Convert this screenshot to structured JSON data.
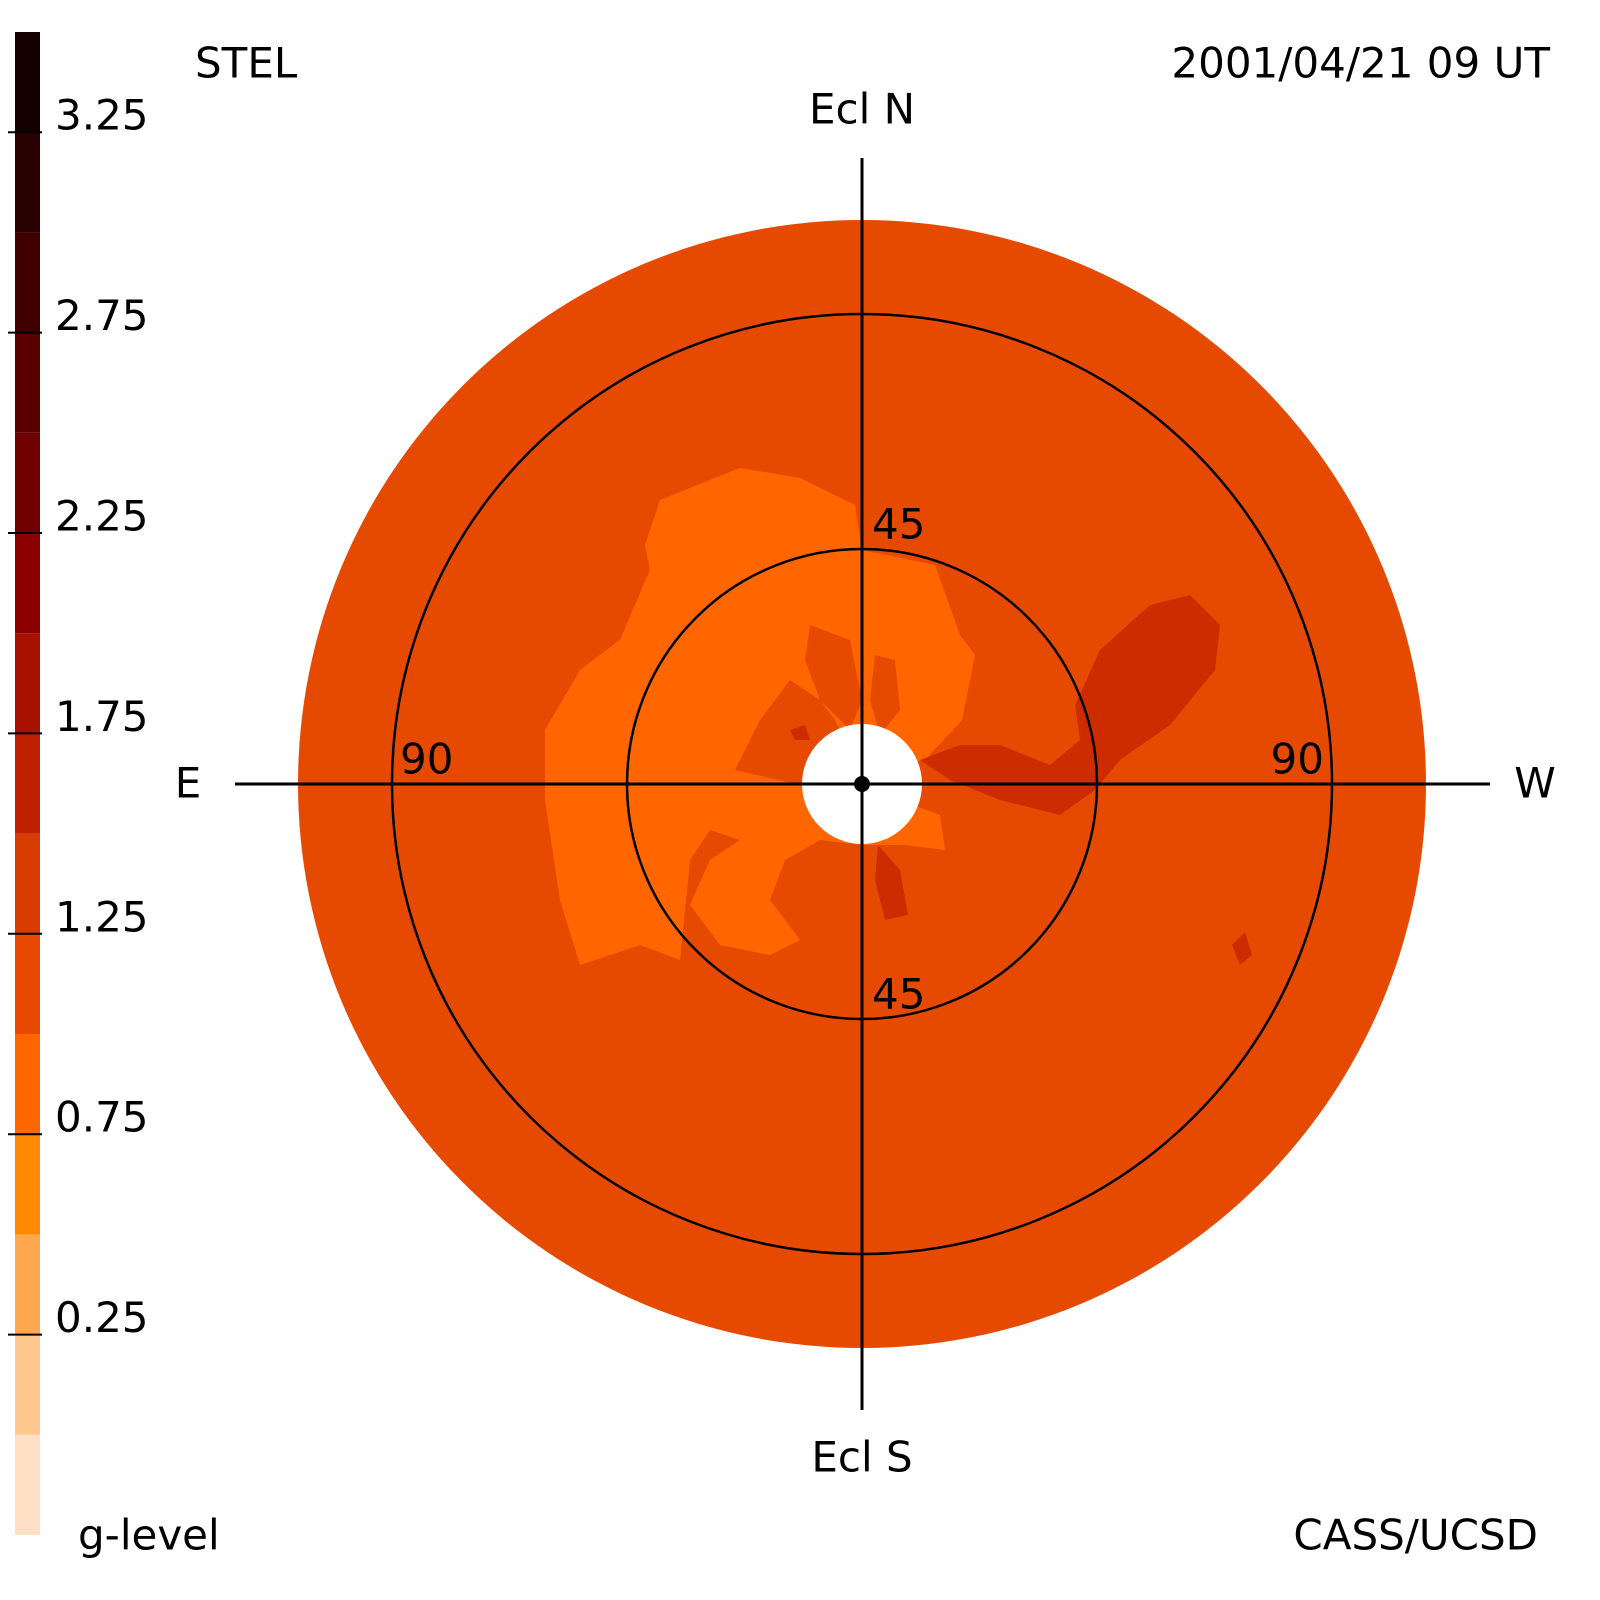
{
  "chart_data": {
    "type": "skymap",
    "title": "STEL",
    "subtitle": "2001/04/21 09 UT",
    "credit": "CASS/UCSD",
    "colorbar_label": "g-level",
    "directions": {
      "north": "Ecl N",
      "south": "Ecl S",
      "east": "E",
      "west": "W"
    },
    "clim": [
      -0.25,
      3.5
    ],
    "cticks": [
      0.25,
      0.75,
      1.25,
      1.75,
      2.25,
      2.75,
      3.25
    ],
    "band_step": 0.25,
    "band_colors": [
      "#ffe0c4",
      "#ffc890",
      "#ffa850",
      "#ff8a00",
      "#ff6600",
      "#e84800",
      "#d83c00",
      "#c02000",
      "#a81000",
      "#8c0000",
      "#700000",
      "#580000",
      "#400000",
      "#280000",
      "#140000"
    ],
    "rlim": [
      0,
      108
    ],
    "rings": [
      45,
      90
    ]
  }
}
